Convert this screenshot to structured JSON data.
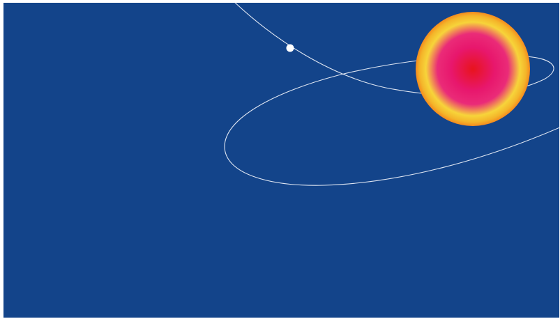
{
  "scene": {
    "colors": {
      "background": "#13448a",
      "orbit_stroke": "#dfe6f2",
      "satellite_fill": "#ffffff",
      "star_core": "#e8141d",
      "star_mid": "#e8176d",
      "star_glow": "#f7d43a",
      "star_rim": "#f58a1e"
    },
    "objects": [
      "orbit-path",
      "satellite",
      "star"
    ]
  }
}
